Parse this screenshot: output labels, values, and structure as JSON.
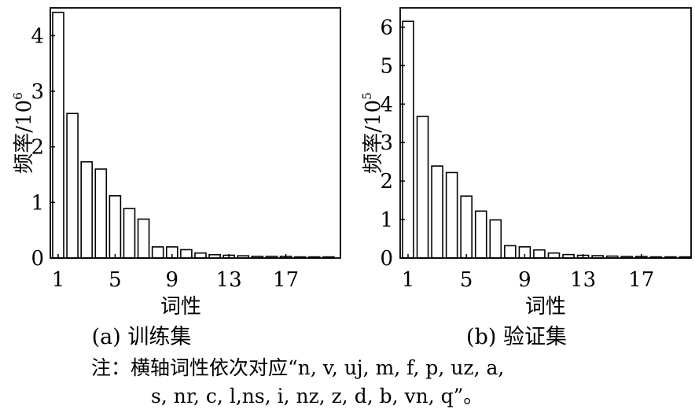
{
  "chart_data": [
    {
      "type": "bar",
      "caption": "(a) 训练集",
      "xlabel": "词性",
      "ylabel_text": "频率/10",
      "ylabel_exponent": "6",
      "ylim": [
        0,
        4.5
      ],
      "y_ticks": [
        0,
        1,
        2,
        3,
        4
      ],
      "x_ticks": [
        1,
        5,
        9,
        13,
        17
      ],
      "categories": [
        1,
        2,
        3,
        4,
        5,
        6,
        7,
        8,
        9,
        10,
        11,
        12,
        13,
        14,
        15,
        16,
        17,
        18,
        19,
        20
      ],
      "values": [
        4.42,
        2.6,
        1.73,
        1.6,
        1.12,
        0.89,
        0.7,
        0.2,
        0.2,
        0.15,
        0.09,
        0.06,
        0.05,
        0.04,
        0.03,
        0.03,
        0.03,
        0.02,
        0.02,
        0.02
      ],
      "grid": false
    },
    {
      "type": "bar",
      "caption": "(b) 验证集",
      "xlabel": "词性",
      "ylabel_text": "频率/10",
      "ylabel_exponent": "5",
      "ylim": [
        0,
        6.5
      ],
      "y_ticks": [
        0,
        1,
        2,
        3,
        4,
        5,
        6
      ],
      "x_ticks": [
        1,
        5,
        9,
        13,
        17
      ],
      "categories": [
        1,
        2,
        3,
        4,
        5,
        6,
        7,
        8,
        9,
        10,
        11,
        12,
        13,
        14,
        15,
        16,
        17,
        18,
        19,
        20
      ],
      "values": [
        6.15,
        3.68,
        2.39,
        2.22,
        1.61,
        1.22,
        0.99,
        0.32,
        0.29,
        0.21,
        0.13,
        0.09,
        0.07,
        0.06,
        0.05,
        0.04,
        0.04,
        0.03,
        0.03,
        0.03
      ],
      "grid": false
    }
  ],
  "note": {
    "line1": "注：横轴词性依次对应“n, v, uj, m, f, p, uz, a,",
    "line2": "s, nr, c, l,ns, i, nz, z, d, b, vn, q”。"
  }
}
